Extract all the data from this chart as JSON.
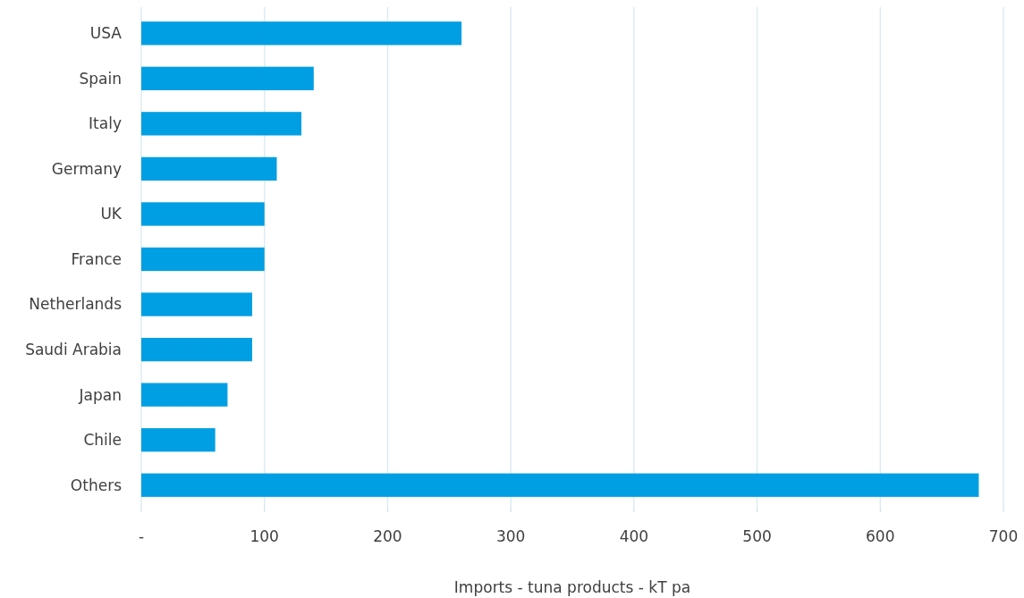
{
  "chart_data": {
    "type": "bar",
    "orientation": "horizontal",
    "xlabel": "Imports - tuna products - kT pa",
    "categories": [
      "USA",
      "Spain",
      "Italy",
      "Germany",
      "UK",
      "France",
      "Netherlands",
      "Saudi Arabia",
      "Japan",
      "Chile",
      "Others"
    ],
    "values": [
      260,
      140,
      130,
      110,
      100,
      100,
      90,
      90,
      70,
      60,
      680
    ],
    "color": "#009fe3",
    "xlim": [
      0,
      700
    ],
    "xticks": [
      {
        "value": 0,
        "label": "-"
      },
      100,
      200,
      300,
      400,
      500,
      600,
      700
    ],
    "grid": "x"
  }
}
